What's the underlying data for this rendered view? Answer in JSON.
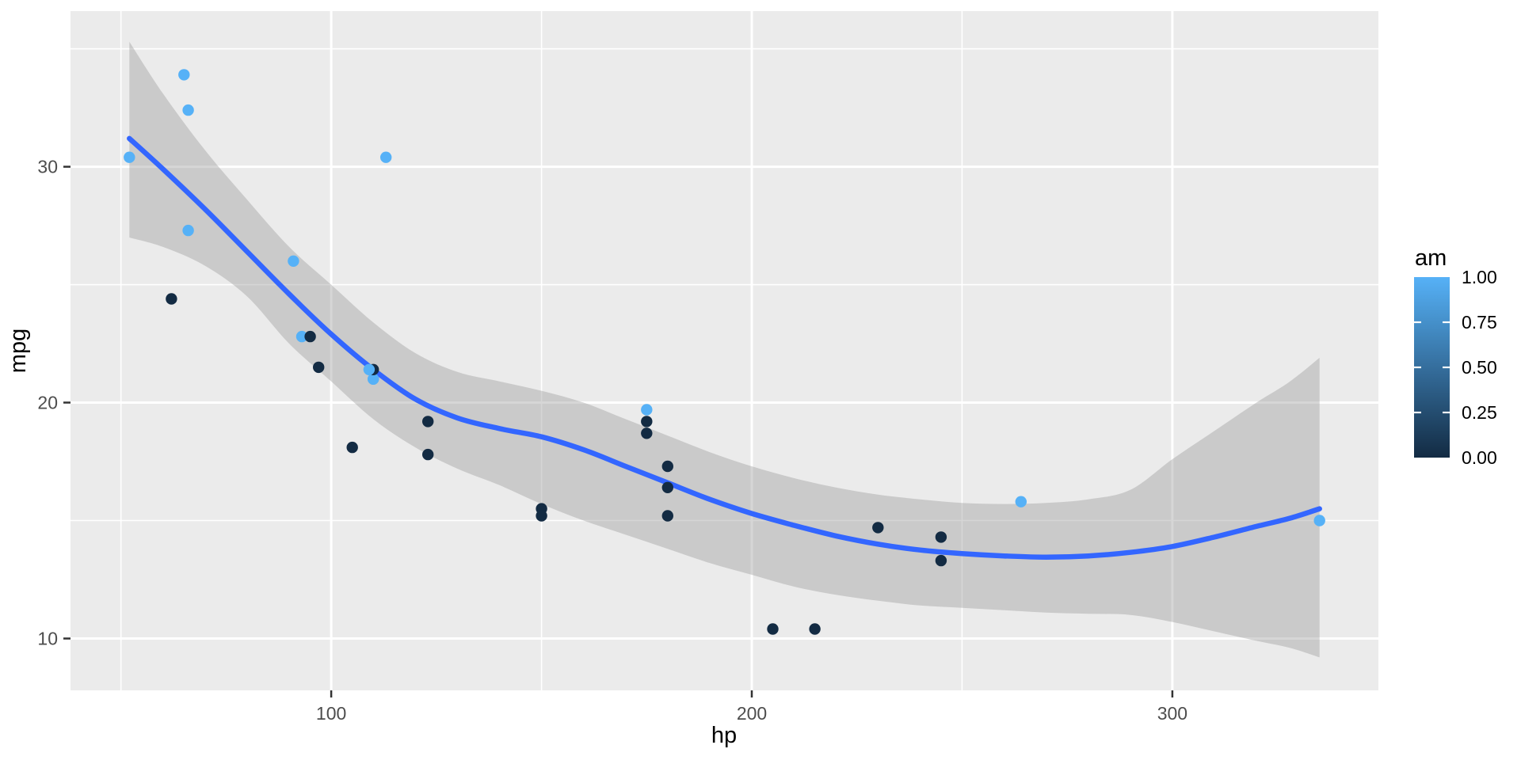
{
  "figure": {
    "background": "#FFFFFF"
  },
  "chart_data": {
    "type": "scatter",
    "title": "",
    "xlabel": "hp",
    "ylabel": "mpg",
    "x_axis": {
      "ticks": [
        100,
        200,
        300
      ],
      "tick_labels": [
        "100",
        "200",
        "300"
      ],
      "minor": [
        50,
        150,
        250
      ],
      "range": [
        38,
        349
      ]
    },
    "y_axis": {
      "ticks": [
        10,
        20,
        30
      ],
      "tick_labels": [
        "10",
        "20",
        "30"
      ],
      "minor": [
        15,
        25,
        35
      ],
      "range": [
        7.8,
        36.6
      ]
    },
    "grid": "on",
    "points": {
      "columns": [
        "hp",
        "mpg",
        "am"
      ],
      "rows": [
        [
          110,
          21.0,
          1
        ],
        [
          110,
          21.0,
          1
        ],
        [
          93,
          22.8,
          1
        ],
        [
          110,
          21.4,
          0
        ],
        [
          175,
          18.7,
          0
        ],
        [
          105,
          18.1,
          0
        ],
        [
          245,
          14.3,
          0
        ],
        [
          62,
          24.4,
          0
        ],
        [
          95,
          22.8,
          0
        ],
        [
          123,
          19.2,
          0
        ],
        [
          123,
          17.8,
          0
        ],
        [
          180,
          16.4,
          0
        ],
        [
          180,
          17.3,
          0
        ],
        [
          180,
          15.2,
          0
        ],
        [
          205,
          10.4,
          0
        ],
        [
          215,
          10.4,
          0
        ],
        [
          230,
          14.7,
          0
        ],
        [
          66,
          32.4,
          1
        ],
        [
          52,
          30.4,
          1
        ],
        [
          65,
          33.9,
          1
        ],
        [
          97,
          21.5,
          0
        ],
        [
          150,
          15.5,
          0
        ],
        [
          150,
          15.2,
          0
        ],
        [
          245,
          13.3,
          0
        ],
        [
          175,
          19.2,
          0
        ],
        [
          66,
          27.3,
          1
        ],
        [
          91,
          26.0,
          1
        ],
        [
          113,
          30.4,
          1
        ],
        [
          264,
          15.8,
          1
        ],
        [
          175,
          19.7,
          1
        ],
        [
          335,
          15.0,
          1
        ],
        [
          109,
          21.4,
          1
        ]
      ]
    },
    "smooth": {
      "method": "loess",
      "hp": [
        52,
        60,
        70,
        80,
        90,
        100,
        110,
        120,
        130,
        140,
        150,
        160,
        170,
        180,
        190,
        200,
        210,
        220,
        230,
        240,
        250,
        260,
        270,
        280,
        290,
        300,
        310,
        320,
        328,
        335
      ],
      "fit": [
        31.2,
        29.9,
        28.2,
        26.4,
        24.6,
        22.9,
        21.4,
        20.15,
        19.35,
        18.9,
        18.55,
        18.0,
        17.3,
        16.6,
        15.9,
        15.3,
        14.8,
        14.35,
        14.0,
        13.75,
        13.6,
        13.5,
        13.45,
        13.5,
        13.65,
        13.9,
        14.3,
        14.75,
        15.1,
        15.5
      ],
      "upr": [
        35.3,
        33.1,
        30.7,
        28.6,
        26.6,
        25.0,
        23.4,
        22.1,
        21.3,
        20.9,
        20.5,
        20.0,
        19.3,
        18.6,
        17.9,
        17.3,
        16.8,
        16.4,
        16.1,
        15.9,
        15.75,
        15.7,
        15.75,
        15.9,
        16.3,
        17.6,
        18.8,
        20.0,
        20.9,
        21.9
      ],
      "lwr": [
        27.0,
        26.6,
        25.8,
        24.5,
        22.5,
        20.9,
        19.3,
        18.1,
        17.2,
        16.5,
        15.7,
        15.0,
        14.4,
        13.8,
        13.2,
        12.7,
        12.2,
        11.85,
        11.6,
        11.4,
        11.3,
        11.2,
        11.1,
        11.05,
        11.0,
        10.7,
        10.3,
        9.9,
        9.6,
        9.2
      ]
    },
    "legend": {
      "title": "am",
      "position": "right",
      "entries": [
        {
          "label": "1.00",
          "value": 1.0
        },
        {
          "label": "0.75",
          "value": 0.75
        },
        {
          "label": "0.50",
          "value": 0.5
        },
        {
          "label": "0.25",
          "value": 0.25
        },
        {
          "label": "0.00",
          "value": 0.0
        }
      ],
      "tick_values": [
        0.75,
        0.5,
        0.25
      ]
    },
    "style": {
      "panel_bg": "#EBEBEB",
      "grid_color": "#FFFFFF",
      "axis_text_color": "#4D4D4D",
      "axis_title_color": "#000000",
      "tick_mark_color": "#333333",
      "point_color_high": "#56B1F7",
      "point_color_low": "#132B43",
      "smooth_line_color": "#3366FF",
      "ribbon_color": "#999999",
      "ribbon_opacity": 0.4,
      "legend_text_color": "#000000"
    }
  }
}
